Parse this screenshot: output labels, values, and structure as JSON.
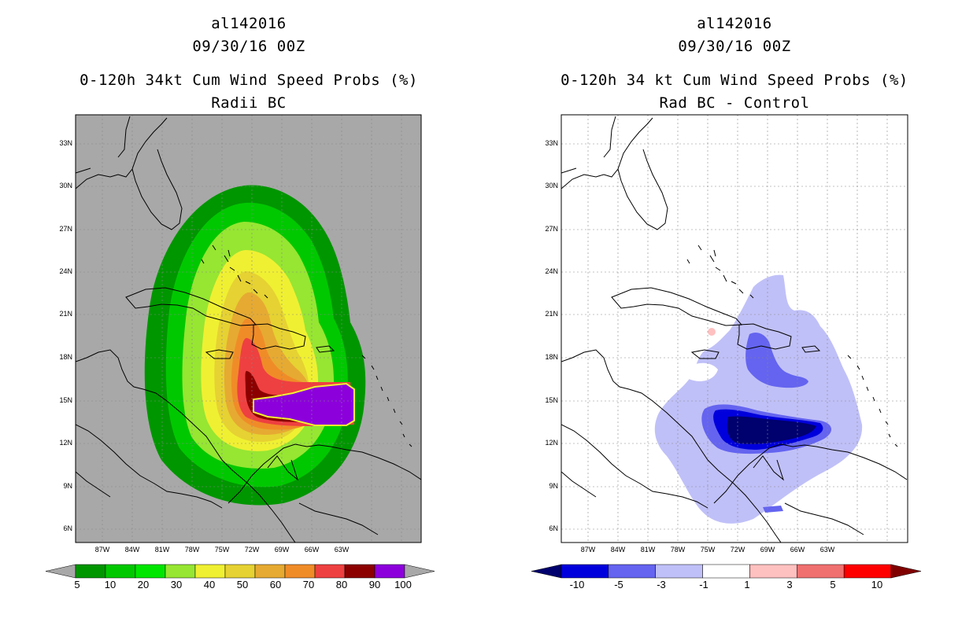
{
  "panels": [
    {
      "id": "left",
      "titles": [
        "al142016",
        "09/30/16 00Z",
        "0-120h 34kt Cum Wind Speed Probs (%)",
        "Radii BC"
      ],
      "background": "#a8a8a8",
      "colorbar": {
        "labels": [
          "5",
          "10",
          "20",
          "30",
          "40",
          "50",
          "60",
          "70",
          "80",
          "90",
          "100"
        ],
        "colors": [
          "#009600",
          "#00c800",
          "#00e600",
          "#96e632",
          "#f0f032",
          "#e6d232",
          "#e6aa32",
          "#f08c28",
          "#ee4040",
          "#8c0000",
          "#8c00dc"
        ],
        "under_color": "#a8a8a8",
        "over_color": "#a8a8a8"
      }
    },
    {
      "id": "right",
      "titles": [
        "al142016",
        "09/30/16 00Z",
        "0-120h 34 kt Cum Wind Speed Probs (%)",
        "Rad BC - Control"
      ],
      "background": "#ffffff",
      "colorbar": {
        "labels": [
          "-10",
          "-5",
          "-3",
          "-1",
          "1",
          "3",
          "5",
          "10"
        ],
        "colors": [
          "#0000dc",
          "#6464f0",
          "#c0c0f8",
          "#ffffff",
          "#ffc0c0",
          "#f07070",
          "#ff0000"
        ],
        "under_color": "#00006e",
        "over_color": "#800000"
      }
    }
  ],
  "axes": {
    "lat_labels": [
      "33N",
      "30N",
      "27N",
      "24N",
      "21N",
      "18N",
      "15N",
      "12N",
      "9N",
      "6N"
    ],
    "lon_labels": [
      "87W",
      "84W",
      "81W",
      "78W",
      "75W",
      "72W",
      "69W",
      "66W",
      "63W"
    ]
  }
}
